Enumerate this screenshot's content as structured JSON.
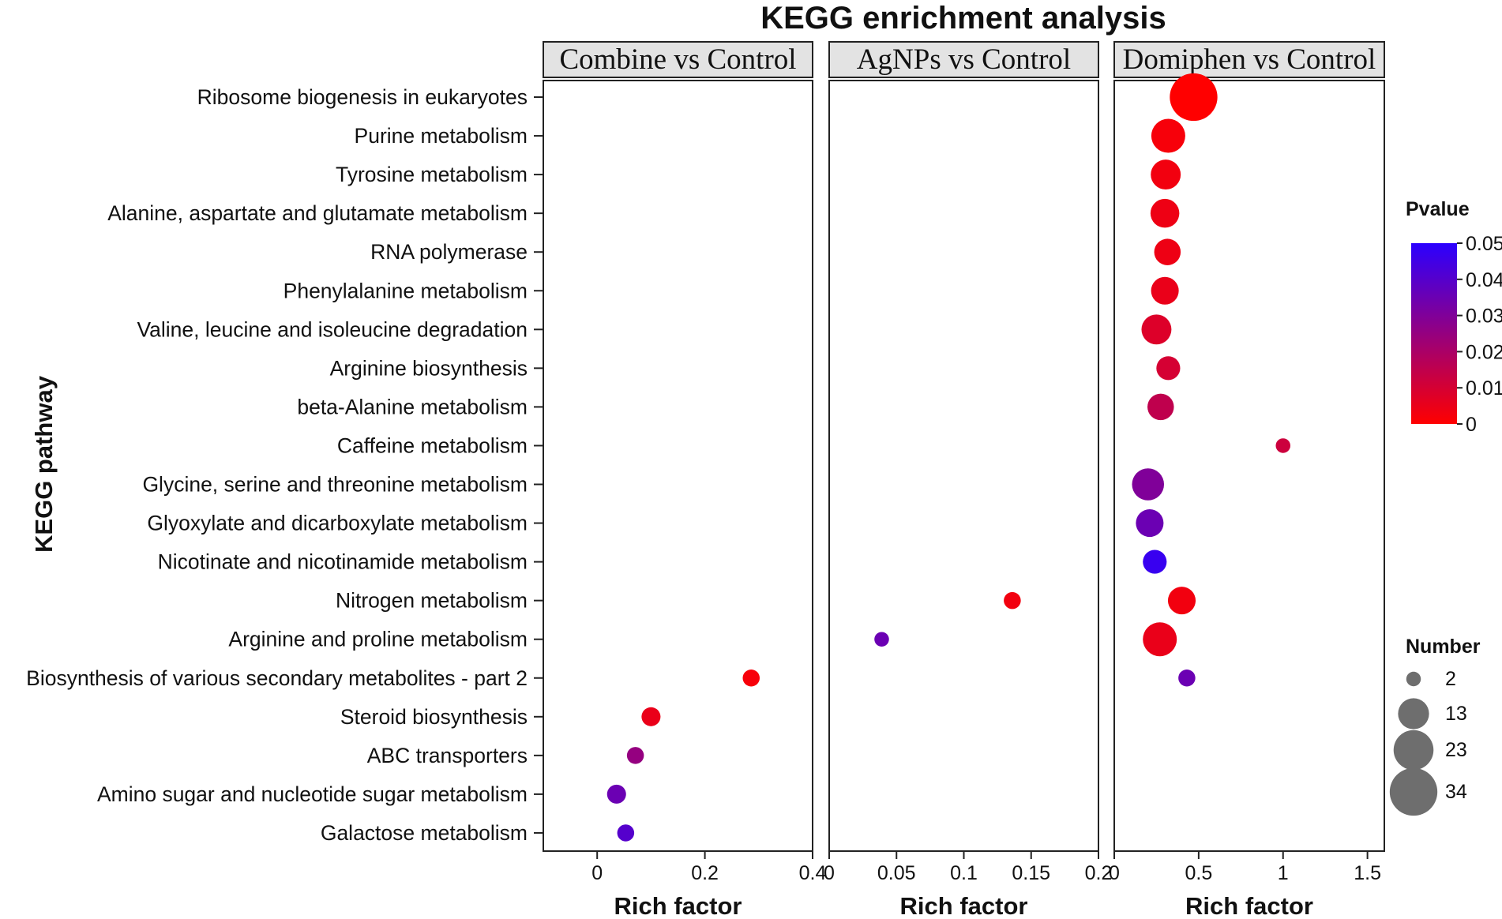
{
  "chart_data": {
    "type": "scatter",
    "title": "KEGG enrichment analysis",
    "ylabel": "KEGG pathway",
    "xlabel": "Rich factor",
    "pathways": [
      "Ribosome biogenesis in eukaryotes",
      "Purine metabolism",
      "Tyrosine metabolism",
      "Alanine, aspartate and glutamate metabolism",
      "RNA polymerase",
      "Phenylalanine metabolism",
      "Valine, leucine and isoleucine degradation",
      "Arginine biosynthesis",
      "beta-Alanine metabolism",
      "Caffeine metabolism",
      "Glycine, serine and threonine metabolism",
      "Glyoxylate and dicarboxylate metabolism",
      "Nicotinate and nicotinamide metabolism",
      "Nitrogen metabolism",
      "Arginine and proline metabolism",
      "Biosynthesis of various secondary metabolites - part 2",
      "Steroid biosynthesis",
      "ABC transporters",
      "Amino sugar and nucleotide sugar metabolism",
      "Galactose metabolism"
    ],
    "panels": [
      {
        "name": "Combine vs Control",
        "xlim": [
          -0.1,
          0.4
        ],
        "ticks": [
          0,
          0.2,
          0.4
        ],
        "tick_labels": [
          "0",
          "0.2",
          "0.4"
        ],
        "points": [
          {
            "pathway": "Biosynthesis of various secondary metabolites - part 2",
            "rich_factor": 0.286,
            "pvalue": 0.002,
            "number": 3
          },
          {
            "pathway": "Steroid biosynthesis",
            "rich_factor": 0.1,
            "pvalue": 0.005,
            "number": 4
          },
          {
            "pathway": "ABC transporters",
            "rich_factor": 0.071,
            "pvalue": 0.025,
            "number": 3
          },
          {
            "pathway": "Amino sugar and nucleotide sugar metabolism",
            "rich_factor": 0.036,
            "pvalue": 0.035,
            "number": 4
          },
          {
            "pathway": "Galactose metabolism",
            "rich_factor": 0.053,
            "pvalue": 0.04,
            "number": 3
          }
        ]
      },
      {
        "name": "AgNPs vs Control",
        "xlim": [
          0,
          0.2
        ],
        "ticks": [
          0,
          0.05,
          0.1,
          0.15,
          0.2
        ],
        "tick_labels": [
          "0",
          "0.05",
          "0.1",
          "0.15",
          "0.2"
        ],
        "points": [
          {
            "pathway": "Nitrogen metabolism",
            "rich_factor": 0.136,
            "pvalue": 0.003,
            "number": 3
          },
          {
            "pathway": "Arginine and proline metabolism",
            "rich_factor": 0.039,
            "pvalue": 0.035,
            "number": 2
          }
        ]
      },
      {
        "name": "Domiphen vs Control",
        "xlim": [
          0,
          1.6
        ],
        "ticks": [
          0,
          0.5,
          1,
          1.5
        ],
        "tick_labels": [
          "0",
          "0.5",
          "1",
          "1.5"
        ],
        "points": [
          {
            "pathway": "Ribosome biogenesis in eukaryotes",
            "rich_factor": 0.47,
            "pvalue": 0.0,
            "number": 34
          },
          {
            "pathway": "Purine metabolism",
            "rich_factor": 0.32,
            "pvalue": 0.002,
            "number": 16
          },
          {
            "pathway": "Tyrosine metabolism",
            "rich_factor": 0.305,
            "pvalue": 0.003,
            "number": 12
          },
          {
            "pathway": "Alanine, aspartate and glutamate metabolism",
            "rich_factor": 0.3,
            "pvalue": 0.004,
            "number": 11
          },
          {
            "pathway": "RNA polymerase",
            "rich_factor": 0.315,
            "pvalue": 0.004,
            "number": 9
          },
          {
            "pathway": "Phenylalanine metabolism",
            "rich_factor": 0.3,
            "pvalue": 0.005,
            "number": 10
          },
          {
            "pathway": "Valine, leucine and isoleucine degradation",
            "rich_factor": 0.25,
            "pvalue": 0.008,
            "number": 12
          },
          {
            "pathway": "Arginine biosynthesis",
            "rich_factor": 0.32,
            "pvalue": 0.01,
            "number": 7
          },
          {
            "pathway": "beta-Alanine metabolism",
            "rich_factor": 0.275,
            "pvalue": 0.015,
            "number": 9
          },
          {
            "pathway": "Caffeine metabolism",
            "rich_factor": 1.0,
            "pvalue": 0.012,
            "number": 2
          },
          {
            "pathway": "Glycine, serine and threonine metabolism",
            "rich_factor": 0.2,
            "pvalue": 0.03,
            "number": 14
          },
          {
            "pathway": "Glyoxylate and dicarboxylate metabolism",
            "rich_factor": 0.21,
            "pvalue": 0.035,
            "number": 10
          },
          {
            "pathway": "Nicotinate and nicotinamide metabolism",
            "rich_factor": 0.24,
            "pvalue": 0.047,
            "number": 7
          },
          {
            "pathway": "Nitrogen metabolism",
            "rich_factor": 0.4,
            "pvalue": 0.003,
            "number": 10
          },
          {
            "pathway": "Arginine and proline metabolism",
            "rich_factor": 0.27,
            "pvalue": 0.005,
            "number": 16
          },
          {
            "pathway": "Biosynthesis of various secondary metabolites - part 2",
            "rich_factor": 0.43,
            "pvalue": 0.035,
            "number": 3
          }
        ]
      }
    ],
    "color_legend": {
      "title": "Pvalue",
      "min": 0,
      "max": 0.05,
      "ticks": [
        "0",
        "0.01",
        "0.02",
        "0.03",
        "0.04",
        "0.05"
      ],
      "low_color": "#ff0000",
      "high_color": "#2b00ff"
    },
    "size_legend": {
      "title": "Number",
      "values": [
        2,
        13,
        23,
        34
      ],
      "labels": [
        "2",
        "13",
        "23",
        "34"
      ],
      "color": "#6e6e6e"
    }
  }
}
